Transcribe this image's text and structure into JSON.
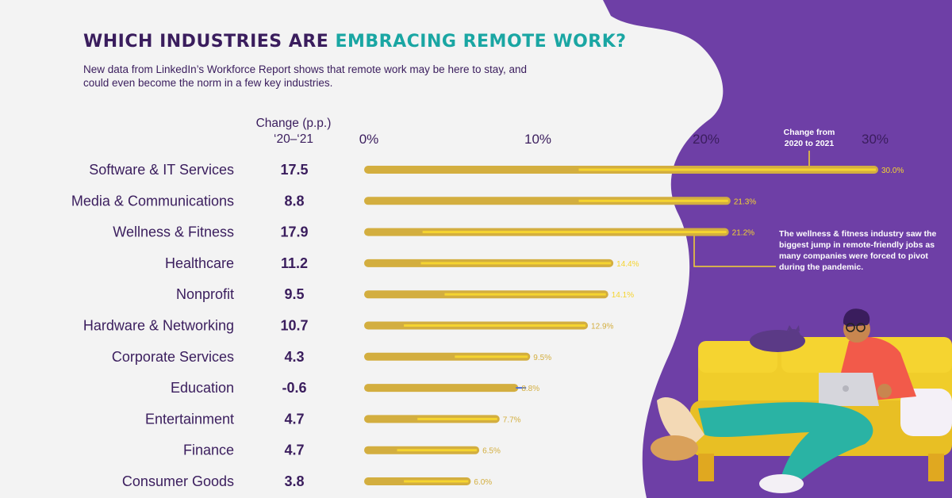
{
  "header": {
    "title_part1": "WHICH INDUSTRIES ARE ",
    "title_part2": "EMBRACING REMOTE WORK?",
    "subtitle": "New data from LinkedIn’s Workforce Report shows that remote work may be here to stay, and could even become the norm in a few key industries."
  },
  "column_header": {
    "line1": "Change (p.p.)",
    "line2": "‘20–‘21"
  },
  "annotations": {
    "top_callout": "Change from 2020 to 2021",
    "side_callout": "The wellness & fitness industry saw the biggest jump in remote-friendly jobs as many companies were forced to pivot during the pandemic."
  },
  "colors": {
    "bar": "#d3ae3f",
    "bar_segment": "#f5d430",
    "negative_marker": "#4a6ed8",
    "title": "#3a1d5d",
    "title_accent": "#1aa6a3",
    "purple_bg": "#6e3fa6",
    "value_label": "#d3ae3f"
  },
  "chart_data": {
    "type": "bar",
    "orientation": "horizontal",
    "x_ticks": [
      "0%",
      "10%",
      "20%",
      "30%"
    ],
    "xlim": [
      0,
      30
    ],
    "categories": [
      "Software & IT Services",
      "Media & Communications",
      "Wellness & Fitness",
      "Healthcare",
      "Nonprofit",
      "Hardware & Networking",
      "Corporate Services",
      "Education",
      "Entertainment",
      "Finance",
      "Consumer Goods"
    ],
    "values": [
      30.0,
      21.3,
      21.2,
      14.4,
      14.1,
      12.9,
      9.5,
      8.8,
      7.7,
      6.5,
      6.0
    ],
    "value_labels": [
      "30.0%",
      "21.3%",
      "21.2%",
      "14.4%",
      "14.1%",
      "12.9%",
      "9.5%",
      "8.8%",
      "7.7%",
      "6.5%",
      "6.0%"
    ],
    "change_pp": [
      17.5,
      8.8,
      17.9,
      11.2,
      9.5,
      10.7,
      4.3,
      -0.6,
      4.7,
      4.7,
      3.8
    ],
    "change_labels": [
      "17.5",
      "8.8",
      "17.9",
      "11.2",
      "9.5",
      "10.7",
      "4.3",
      "-0.6",
      "4.7",
      "4.7",
      "3.8"
    ]
  }
}
